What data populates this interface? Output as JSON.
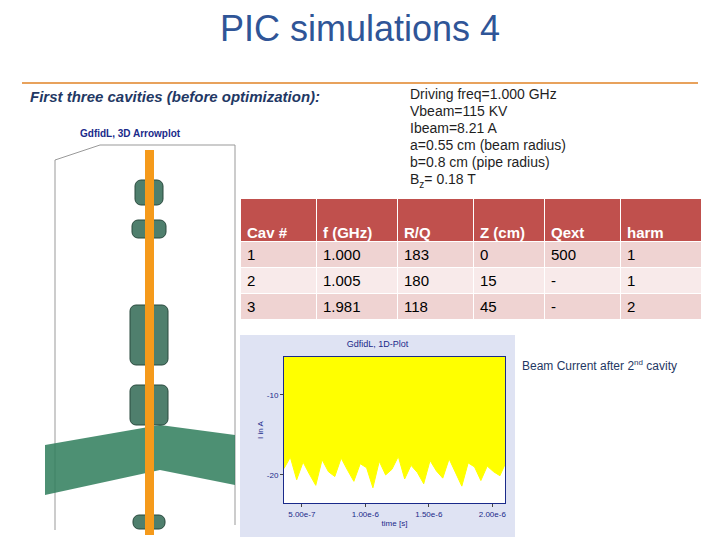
{
  "slide": {
    "title": "PIC simulations 4",
    "subtitle": "First three cavities (before optimization):",
    "parameters": [
      "Driving freq=1.000 GHz",
      "Vbeam=115 KV",
      "Ibeam=8.21 A",
      "a=0.55 cm (beam radius)",
      "b=0.8 cm (pipe radius)",
      {
        "text": "B",
        "sub": "z",
        "after": "= 0.18 T"
      }
    ],
    "table": {
      "header": [
        "Cav #",
        "f (GHz)",
        "R/Q",
        "Z (cm)",
        "Qext",
        "harm"
      ],
      "rows": [
        [
          "1",
          "1.000",
          "183",
          "0",
          "500",
          "1"
        ],
        [
          "2",
          "1.005",
          "180",
          "15",
          "-",
          "1"
        ],
        [
          "3",
          "1.981",
          "118",
          "45",
          "-",
          "2"
        ]
      ]
    },
    "image_label": "GdfidL, 3D Arrowplot",
    "caption": {
      "text": "Beam Current after 2",
      "sup": "nd",
      "after": " cavity"
    }
  },
  "chart_data": {
    "type": "area",
    "title": "GdfidL, 1D-Plot",
    "x_label": "time [s]",
    "y_label": "I in A",
    "x": [
      3.6e-07,
      4.1e-07,
      4.6e-07,
      5.1e-07,
      5.6e-07,
      6.1e-07,
      6.6e-07,
      7.1e-07,
      7.6e-07,
      8.1e-07,
      8.6e-07,
      9.1e-07,
      9.6e-07,
      1.01e-06,
      1.06e-06,
      1.11e-06,
      1.16e-06,
      1.21e-06,
      1.26e-06,
      1.31e-06,
      1.36e-06,
      1.41e-06,
      1.46e-06,
      1.51e-06,
      1.56e-06,
      1.61e-06,
      1.66e-06,
      1.71e-06,
      1.76e-06,
      1.81e-06,
      1.86e-06,
      1.91e-06,
      1.96e-06,
      2.01e-06,
      2.06e-06,
      2.1e-06
    ],
    "values": [
      -19.2,
      -17.8,
      -20.6,
      -18.4,
      -19.9,
      -21.3,
      -18.1,
      -19.6,
      -20.2,
      -17.9,
      -19.4,
      -20.8,
      -18.6,
      -19.1,
      -21.6,
      -18.3,
      -20.0,
      -19.3,
      -17.7,
      -20.5,
      -18.8,
      -19.7,
      -21.1,
      -18.2,
      -19.5,
      -20.4,
      -18.0,
      -19.8,
      -21.4,
      -18.5,
      -19.0,
      -20.7,
      -18.9,
      -19.6,
      -20.1,
      -18.7
    ],
    "color": "#ffff00",
    "xlim": [
      3.6e-07,
      2.1e-06
    ],
    "xticks": [
      {
        "value": 5e-07,
        "label": "5.00e-7"
      },
      {
        "value": 1e-06,
        "label": "1.00e-6"
      },
      {
        "value": 1.5e-06,
        "label": "1.50e-6"
      },
      {
        "value": 2e-06,
        "label": "2.00e-6"
      }
    ],
    "ylim": [
      -23.5,
      -5.3
    ],
    "yticks": [
      -20,
      -10
    ],
    "grid": false
  }
}
